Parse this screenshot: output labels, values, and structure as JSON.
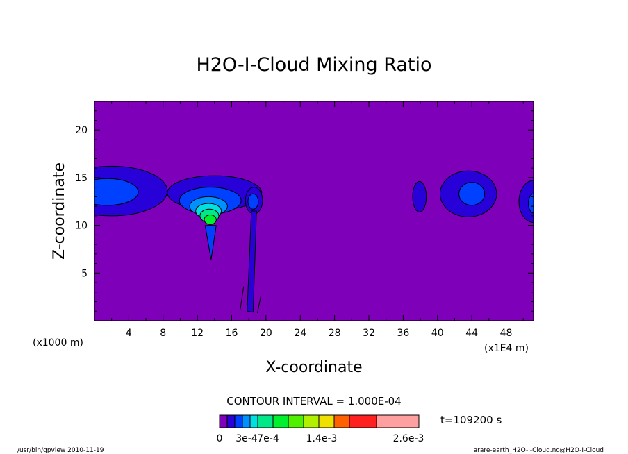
{
  "chart_data": {
    "type": "heatmap",
    "title": "H2O-I-Cloud Mixing Ratio",
    "xlabel": "X-coordinate",
    "ylabel": "Z-coordinate",
    "x_unit_left": "(x1000 m)",
    "x_unit_right": "(x1E4 m)",
    "x_ticks": [
      4,
      8,
      12,
      16,
      20,
      24,
      28,
      32,
      36,
      40,
      44,
      48
    ],
    "y_ticks": [
      5,
      10,
      15,
      20
    ],
    "xlim": [
      0,
      51.2
    ],
    "ylim": [
      0,
      23
    ],
    "contour_interval": "CONTOUR INTERVAL = 1.000E-04",
    "time": "t=109200 s",
    "colorbar": {
      "colors": [
        "#7e00b8",
        "#2800d8",
        "#0040ff",
        "#0090ff",
        "#00e0e0",
        "#00e888",
        "#00f030",
        "#50f000",
        "#b0f000",
        "#f0e000",
        "#ff6000",
        "#ff2020",
        "#ffa0a0"
      ],
      "labels": [
        "0",
        "3e-4",
        "7e-4",
        "1.4e-3",
        "2.6e-3"
      ]
    },
    "blobs": [
      {
        "level": 1,
        "x": 2,
        "z": 13.6,
        "rx": 6.5,
        "rz": 2.6
      },
      {
        "level": 2,
        "x": 1.5,
        "z": 13.5,
        "rx": 3.6,
        "rz": 1.4
      },
      {
        "level": 1,
        "x": 14,
        "z": 13.4,
        "rx": 5.5,
        "rz": 1.8
      },
      {
        "level": 2,
        "x": 13.5,
        "z": 12.6,
        "rx": 3.6,
        "rz": 1.4
      },
      {
        "level": 3,
        "x": 13.3,
        "z": 12.0,
        "rx": 2.2,
        "rz": 1.0
      },
      {
        "level": 4,
        "x": 13.3,
        "z": 11.5,
        "rx": 1.5,
        "rz": 0.8
      },
      {
        "level": 5,
        "x": 13.4,
        "z": 11.0,
        "rx": 1.1,
        "rz": 0.7
      },
      {
        "level": 6,
        "x": 13.5,
        "z": 10.6,
        "rx": 0.7,
        "rz": 0.5
      },
      {
        "level": 1,
        "x": 18.6,
        "z": 12.6,
        "rx": 1.0,
        "rz": 1.4
      },
      {
        "level": 2,
        "x": 18.5,
        "z": 12.5,
        "rx": 0.6,
        "rz": 0.8
      },
      {
        "level": 1,
        "x": 37.9,
        "z": 13.0,
        "rx": 0.8,
        "rz": 1.6
      },
      {
        "level": 1,
        "x": 43.6,
        "z": 13.3,
        "rx": 3.3,
        "rz": 2.4
      },
      {
        "level": 2,
        "x": 44.0,
        "z": 13.3,
        "rx": 1.5,
        "rz": 1.2
      },
      {
        "level": 1,
        "x": 51.2,
        "z": 12.5,
        "rx": 1.7,
        "rz": 2.2
      },
      {
        "level": 2,
        "x": 51.2,
        "z": 12.3,
        "rx": 0.6,
        "rz": 1.0
      }
    ]
  },
  "footer": {
    "left": "/usr/bin/gpview   2010-11-19",
    "right": "arare-earth_H2O-I-Cloud.nc@H2O-I-Cloud"
  }
}
